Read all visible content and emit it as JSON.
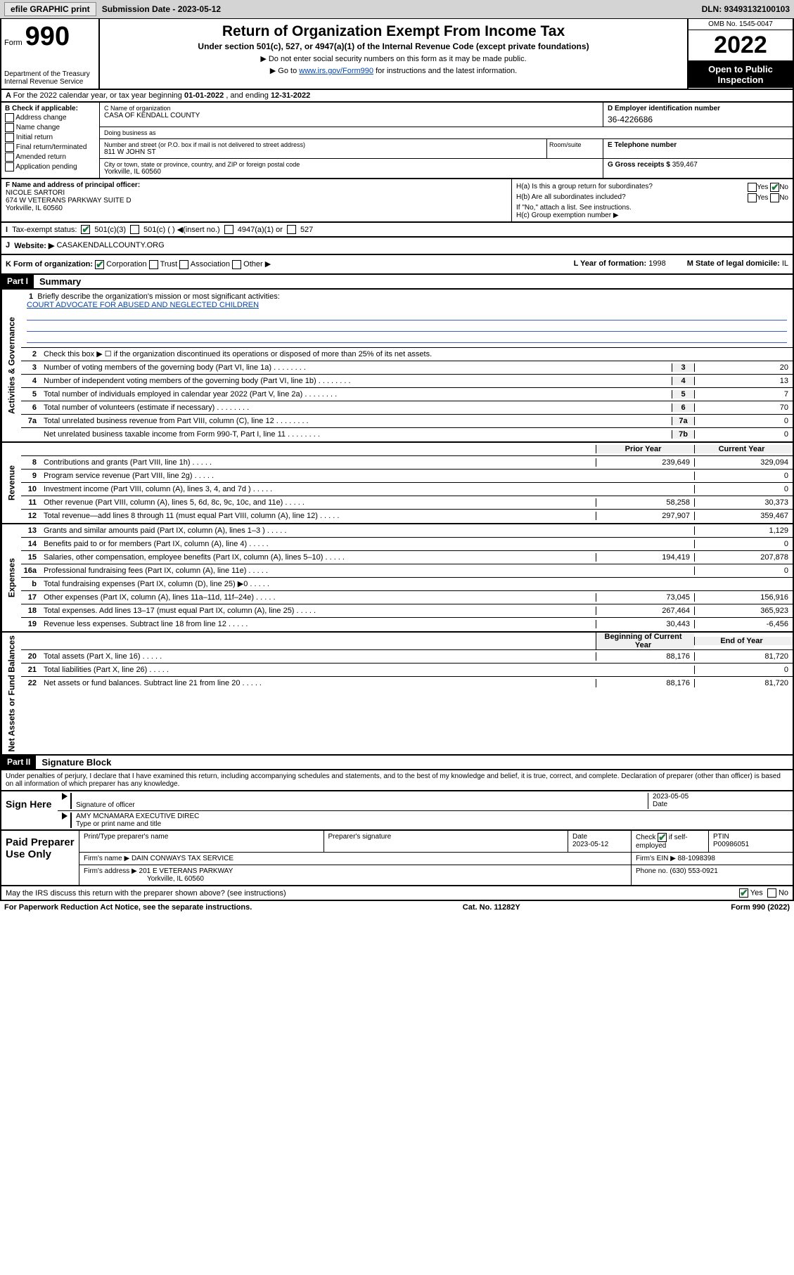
{
  "topbar": {
    "btn1": "efile GRAPHIC print",
    "sub_label": "Submission Date - 2023-05-12",
    "dln": "DLN: 93493132100103"
  },
  "header": {
    "form_word": "Form",
    "form_num": "990",
    "dept": "Department of the Treasury\nInternal Revenue Service",
    "title": "Return of Organization Exempt From Income Tax",
    "sub1": "Under section 501(c), 527, or 4947(a)(1) of the Internal Revenue Code (except private foundations)",
    "sub2": "▶ Do not enter social security numbers on this form as it may be made public.",
    "sub3_pre": "▶ Go to ",
    "sub3_link": "www.irs.gov/Form990",
    "sub3_post": " for instructions and the latest information.",
    "omb": "OMB No. 1545-0047",
    "year": "2022",
    "open_pub": "Open to Public Inspection"
  },
  "row_a": {
    "text_pre": "For the 2022 calendar year, or tax year beginning ",
    "begin": "01-01-2022",
    "mid": " , and ending ",
    "end": "12-31-2022"
  },
  "col_b": {
    "hdr": "B Check if applicable:",
    "items": [
      "Address change",
      "Name change",
      "Initial return",
      "Final return/terminated",
      "Amended return",
      "Application pending"
    ]
  },
  "c": {
    "name_lbl": "C Name of organization",
    "name": "CASA OF KENDALL COUNTY",
    "dba_lbl": "Doing business as",
    "dba": "",
    "street_lbl": "Number and street (or P.O. box if mail is not delivered to street address)",
    "street": "811 W JOHN ST",
    "room_lbl": "Room/suite",
    "city_lbl": "City or town, state or province, country, and ZIP or foreign postal code",
    "city": "Yorkville, IL  60560"
  },
  "d": {
    "lbl": "D Employer identification number",
    "val": "36-4226686",
    "e_lbl": "E Telephone number",
    "e_val": "",
    "g_lbl": "G Gross receipts $",
    "g_val": "359,467"
  },
  "f": {
    "lbl": "F Name and address of principal officer:",
    "name": "NICOLE SARTORI",
    "addr1": "674 W VETERANS PARKWAY SUITE D",
    "addr2": "Yorkville, IL  60560"
  },
  "h": {
    "a": "H(a)  Is this a group return for subordinates?",
    "a_yes": "Yes",
    "a_no": "No",
    "b": "H(b)  Are all subordinates included?",
    "b_yes": "Yes",
    "b_no": "No",
    "b_note": "If \"No,\" attach a list. See instructions.",
    "c": "H(c)  Group exemption number ▶"
  },
  "i": {
    "lbl": "Tax-exempt status:",
    "opt1": "501(c)(3)",
    "opt2": "501(c) (  ) ◀(insert no.)",
    "opt3": "4947(a)(1) or",
    "opt4": "527"
  },
  "j": {
    "lbl": "Website: ▶",
    "val": "CASAKENDALLCOUNTY.ORG"
  },
  "k": {
    "lbl": "K Form of organization:",
    "opts": [
      "Corporation",
      "Trust",
      "Association",
      "Other ▶"
    ],
    "l_lbl": "L Year of formation:",
    "l_val": "1998",
    "m_lbl": "M State of legal domicile:",
    "m_val": "IL"
  },
  "part1": {
    "hdr": "Part I",
    "title": "Summary",
    "mission_lbl": "Briefly describe the organization's mission or most significant activities:",
    "mission": "COURT ADVOCATE FOR ABUSED AND NEGLECTED CHILDREN",
    "line2": "Check this box ▶ ☐  if the organization discontinued its operations or disposed of more than 25% of its net assets.",
    "sides": {
      "gov": "Activities & Governance",
      "rev": "Revenue",
      "exp": "Expenses",
      "net": "Net Assets or Fund Balances"
    },
    "gov_lines": [
      {
        "n": "3",
        "t": "Number of voting members of the governing body (Part VI, line 1a)",
        "box": "3",
        "v": "20"
      },
      {
        "n": "4",
        "t": "Number of independent voting members of the governing body (Part VI, line 1b)",
        "box": "4",
        "v": "13"
      },
      {
        "n": "5",
        "t": "Total number of individuals employed in calendar year 2022 (Part V, line 2a)",
        "box": "5",
        "v": "7"
      },
      {
        "n": "6",
        "t": "Total number of volunteers (estimate if necessary)",
        "box": "6",
        "v": "70"
      },
      {
        "n": "7a",
        "t": "Total unrelated business revenue from Part VIII, column (C), line 12",
        "box": "7a",
        "v": "0"
      },
      {
        "n": "",
        "t": "Net unrelated business taxable income from Form 990-T, Part I, line 11",
        "box": "7b",
        "v": "0"
      }
    ],
    "hdr_prior": "Prior Year",
    "hdr_curr": "Current Year",
    "rev_lines": [
      {
        "n": "8",
        "t": "Contributions and grants (Part VIII, line 1h)",
        "p": "239,649",
        "c": "329,094"
      },
      {
        "n": "9",
        "t": "Program service revenue (Part VIII, line 2g)",
        "p": "",
        "c": "0"
      },
      {
        "n": "10",
        "t": "Investment income (Part VIII, column (A), lines 3, 4, and 7d )",
        "p": "",
        "c": "0"
      },
      {
        "n": "11",
        "t": "Other revenue (Part VIII, column (A), lines 5, 6d, 8c, 9c, 10c, and 11e)",
        "p": "58,258",
        "c": "30,373"
      },
      {
        "n": "12",
        "t": "Total revenue—add lines 8 through 11 (must equal Part VIII, column (A), line 12)",
        "p": "297,907",
        "c": "359,467"
      }
    ],
    "exp_lines": [
      {
        "n": "13",
        "t": "Grants and similar amounts paid (Part IX, column (A), lines 1–3 )",
        "p": "",
        "c": "1,129"
      },
      {
        "n": "14",
        "t": "Benefits paid to or for members (Part IX, column (A), line 4)",
        "p": "",
        "c": "0"
      },
      {
        "n": "15",
        "t": "Salaries, other compensation, employee benefits (Part IX, column (A), lines 5–10)",
        "p": "194,419",
        "c": "207,878"
      },
      {
        "n": "16a",
        "t": "Professional fundraising fees (Part IX, column (A), line 11e)",
        "p": "",
        "c": "0"
      },
      {
        "n": "b",
        "t": "Total fundraising expenses (Part IX, column (D), line 25) ▶0",
        "p": "",
        "c": "",
        "shade": true
      },
      {
        "n": "17",
        "t": "Other expenses (Part IX, column (A), lines 11a–11d, 11f–24e)",
        "p": "73,045",
        "c": "156,916"
      },
      {
        "n": "18",
        "t": "Total expenses. Add lines 13–17 (must equal Part IX, column (A), line 25)",
        "p": "267,464",
        "c": "365,923"
      },
      {
        "n": "19",
        "t": "Revenue less expenses. Subtract line 18 from line 12",
        "p": "30,443",
        "c": "-6,456"
      }
    ],
    "hdr_begin": "Beginning of Current Year",
    "hdr_end": "End of Year",
    "net_lines": [
      {
        "n": "20",
        "t": "Total assets (Part X, line 16)",
        "p": "88,176",
        "c": "81,720"
      },
      {
        "n": "21",
        "t": "Total liabilities (Part X, line 26)",
        "p": "",
        "c": "0"
      },
      {
        "n": "22",
        "t": "Net assets or fund balances. Subtract line 21 from line 20",
        "p": "88,176",
        "c": "81,720"
      }
    ]
  },
  "part2": {
    "hdr": "Part II",
    "title": "Signature Block",
    "penalty": "Under penalties of perjury, I declare that I have examined this return, including accompanying schedules and statements, and to the best of my knowledge and belief, it is true, correct, and complete. Declaration of preparer (other than officer) is based on all information of which preparer has any knowledge."
  },
  "sign": {
    "left": "Sign Here",
    "sig_lbl": "Signature of officer",
    "date_val": "2023-05-05",
    "date_lbl": "Date",
    "name": "AMY MCNAMARA  EXECUTIVE DIREC",
    "name_lbl": "Type or print name and title"
  },
  "paid": {
    "left": "Paid Preparer Use Only",
    "r1": {
      "c1_lbl": "Print/Type preparer's name",
      "c1": "",
      "c2_lbl": "Preparer's signature",
      "c2": "",
      "c3_lbl": "Date",
      "c3": "2023-05-12",
      "c4_lbl": "Check ☑ if self-employed",
      "c5_lbl": "PTIN",
      "c5": "P00986051"
    },
    "r2": {
      "lbl": "Firm's name    ▶",
      "val": "DAIN CONWAYS TAX SERVICE",
      "ein_lbl": "Firm's EIN ▶",
      "ein": "88-1098398"
    },
    "r3": {
      "lbl": "Firm's address ▶",
      "val": "201 E VETERANS PARKWAY",
      "val2": "Yorkville, IL  60560",
      "ph_lbl": "Phone no.",
      "ph": "(630) 553-0921"
    }
  },
  "footer": {
    "discuss": "May the IRS discuss this return with the preparer shown above? (see instructions)",
    "yes": "Yes",
    "no": "No",
    "pra": "For Paperwork Reduction Act Notice, see the separate instructions.",
    "cat": "Cat. No. 11282Y",
    "form": "Form 990 (2022)"
  }
}
